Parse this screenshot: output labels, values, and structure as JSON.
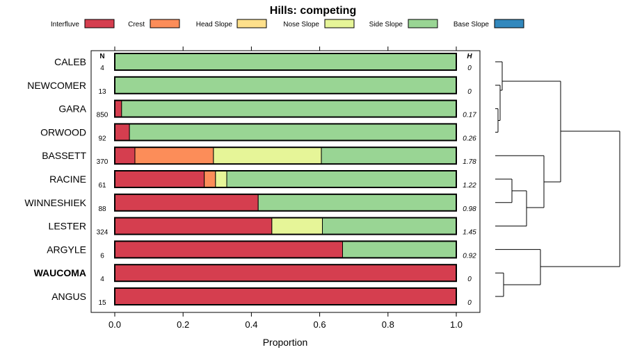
{
  "chart_data": {
    "type": "bar",
    "orientation": "horizontal",
    "stacked": true,
    "title": "Hills: competing",
    "xlabel": "Proportion",
    "ylabel": "",
    "xlim": [
      0,
      1
    ],
    "xticks": [
      "0.0",
      "0.2",
      "0.4",
      "0.6",
      "0.8",
      "1.0"
    ],
    "legend": {
      "position": "top",
      "entries": [
        {
          "name": "Interfluve",
          "color": "#D53E4F"
        },
        {
          "name": "Crest",
          "color": "#FC8D59"
        },
        {
          "name": "Head Slope",
          "color": "#FEE08B"
        },
        {
          "name": "Nose Slope",
          "color": "#E6F598"
        },
        {
          "name": "Side Slope",
          "color": "#99D594"
        },
        {
          "name": "Base Slope",
          "color": "#3288BD"
        }
      ]
    },
    "n_header": "N",
    "h_header": "H",
    "categories": [
      "CALEB",
      "NEWCOMER",
      "GARA",
      "ORWOOD",
      "BASSETT",
      "RACINE",
      "WINNESHIEK",
      "LESTER",
      "ARGYLE",
      "WAUCOMA",
      "ANGUS"
    ],
    "bold_category": "WAUCOMA",
    "n": [
      "4",
      "13",
      "850",
      "92",
      "370",
      "61",
      "88",
      "324",
      "6",
      "4",
      "15"
    ],
    "h": [
      "0",
      "0",
      "0.17",
      "0.26",
      "1.78",
      "1.22",
      "0.98",
      "1.45",
      "0.92",
      "0",
      "0"
    ],
    "series": [
      {
        "name": "Interfluve",
        "values": [
          0,
          0,
          0.02,
          0.043,
          0.059,
          0.262,
          0.42,
          0.46,
          0.667,
          1,
          1
        ]
      },
      {
        "name": "Crest",
        "values": [
          0,
          0,
          0,
          0,
          0.23,
          0.033,
          0,
          0,
          0,
          0,
          0
        ]
      },
      {
        "name": "Head Slope",
        "values": [
          0,
          0,
          0,
          0,
          0,
          0,
          0,
          0,
          0,
          0,
          0
        ]
      },
      {
        "name": "Nose Slope",
        "values": [
          0,
          0,
          0,
          0,
          0.316,
          0.033,
          0,
          0.148,
          0,
          0,
          0
        ]
      },
      {
        "name": "Side Slope",
        "values": [
          1,
          1,
          0.98,
          0.957,
          0.395,
          0.672,
          0.58,
          0.392,
          0.333,
          0,
          0
        ]
      },
      {
        "name": "Base Slope",
        "values": [
          0,
          0,
          0,
          0,
          0,
          0,
          0,
          0,
          0,
          0,
          0
        ]
      }
    ],
    "dendrogram": {
      "description": "hierarchical clustering of categories",
      "merges": [
        {
          "a": "GARA",
          "b": "ORWOOD",
          "height": 0.015
        },
        {
          "a": "NEWCOMER",
          "b": "GARA+ORWOOD",
          "height": 0.035
        },
        {
          "a": "CALEB",
          "b": "NEWCOMER+GARA+ORWOOD",
          "height": 0.06
        },
        {
          "a": "RACINE",
          "b": "WINNESHIEK",
          "height": 0.13
        },
        {
          "a": "RACINE+WINNESHIEK",
          "b": "LESTER",
          "height": 0.24
        },
        {
          "a": "BASSETT",
          "b": "RACINE+WINNESHIEK+LESTER",
          "height": 0.36
        },
        {
          "a": "WAUCOMA",
          "b": "ANGUS",
          "height": 0.075
        },
        {
          "a": "ARGYLE",
          "b": "WAUCOMA+ANGUS",
          "height": 0.33
        },
        {
          "a": "top-cluster",
          "b": "ARGYLE+WAUCOMA+ANGUS",
          "height": 0.9
        },
        {
          "a": "CALEB+NEWCOMER+GARA+ORWOOD",
          "b": "BASSETT+RACINE+WINNESHIEK+LESTER",
          "height": 0.48
        }
      ]
    }
  }
}
